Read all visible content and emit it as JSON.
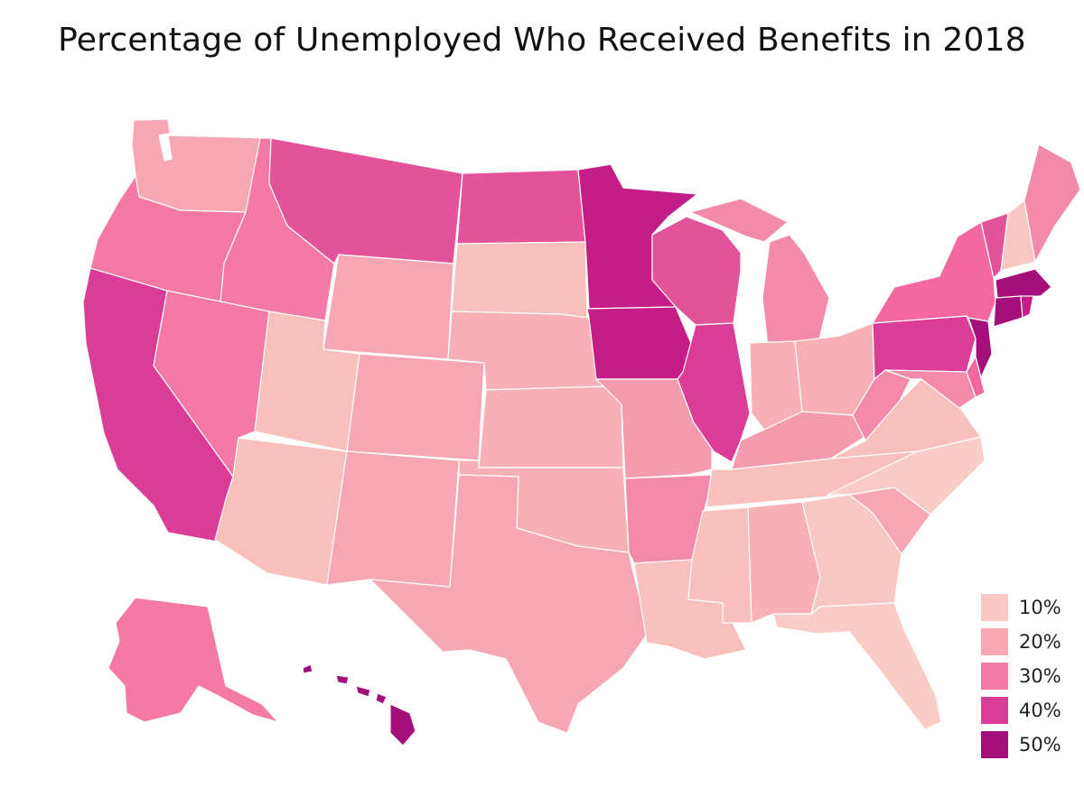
{
  "title": "Percentage of Unemployed Who Received Benefits in 2018",
  "legend": [
    {
      "label": "10%",
      "color": "#f9c7c2"
    },
    {
      "label": "20%",
      "color": "#f7a6b3"
    },
    {
      "label": "30%",
      "color": "#f47aa5"
    },
    {
      "label": "40%",
      "color": "#db3d96"
    },
    {
      "label": "50%",
      "color": "#a40f7c"
    }
  ],
  "states": {
    "WA": "#f7a6b3",
    "OR": "#f47aa5",
    "CA": "#db3d96",
    "ID": "#f47aa5",
    "NV": "#f47aa5",
    "MT": "#e2539a",
    "WY": "#f7a6b3",
    "UT": "#f9c0bb",
    "AZ": "#f9c0bb",
    "CO": "#f7a6b3",
    "NM": "#f7a6b3",
    "ND": "#e2539a",
    "SD": "#f9c0bb",
    "NE": "#f7b1b5",
    "KS": "#f7b1b5",
    "OK": "#f7b1b5",
    "TX": "#f7a6b3",
    "MN": "#c41d88",
    "IA": "#c41d88",
    "MO": "#f49bb0",
    "AR": "#f48aaa",
    "LA": "#f9c0bb",
    "WI": "#e2539a",
    "IL": "#db3d96",
    "MS": "#f9c0bb",
    "MI": "#f48aaa",
    "IN": "#f7b1b5",
    "KY": "#f49bb0",
    "TN": "#f9c0bb",
    "AL": "#f7b1b5",
    "OH": "#f7b1b5",
    "GA": "#f9c7c2",
    "FL": "#f9ccc6",
    "SC": "#f7a6b3",
    "NC": "#f9ccc6",
    "VA": "#f9c0bb",
    "WV": "#f48aaa",
    "PA": "#db3d96",
    "NY": "#f2689f",
    "VT": "#e2539a",
    "NH": "#f9c7c2",
    "ME": "#f48aaa",
    "MA": "#a40f7c",
    "CT": "#a40f7c",
    "RI": "#c41d88",
    "NJ": "#a40f7c",
    "DE": "#f2689f",
    "MD": "#f48aaa",
    "AK": "#f47aa5",
    "HI": "#a40f7c"
  }
}
